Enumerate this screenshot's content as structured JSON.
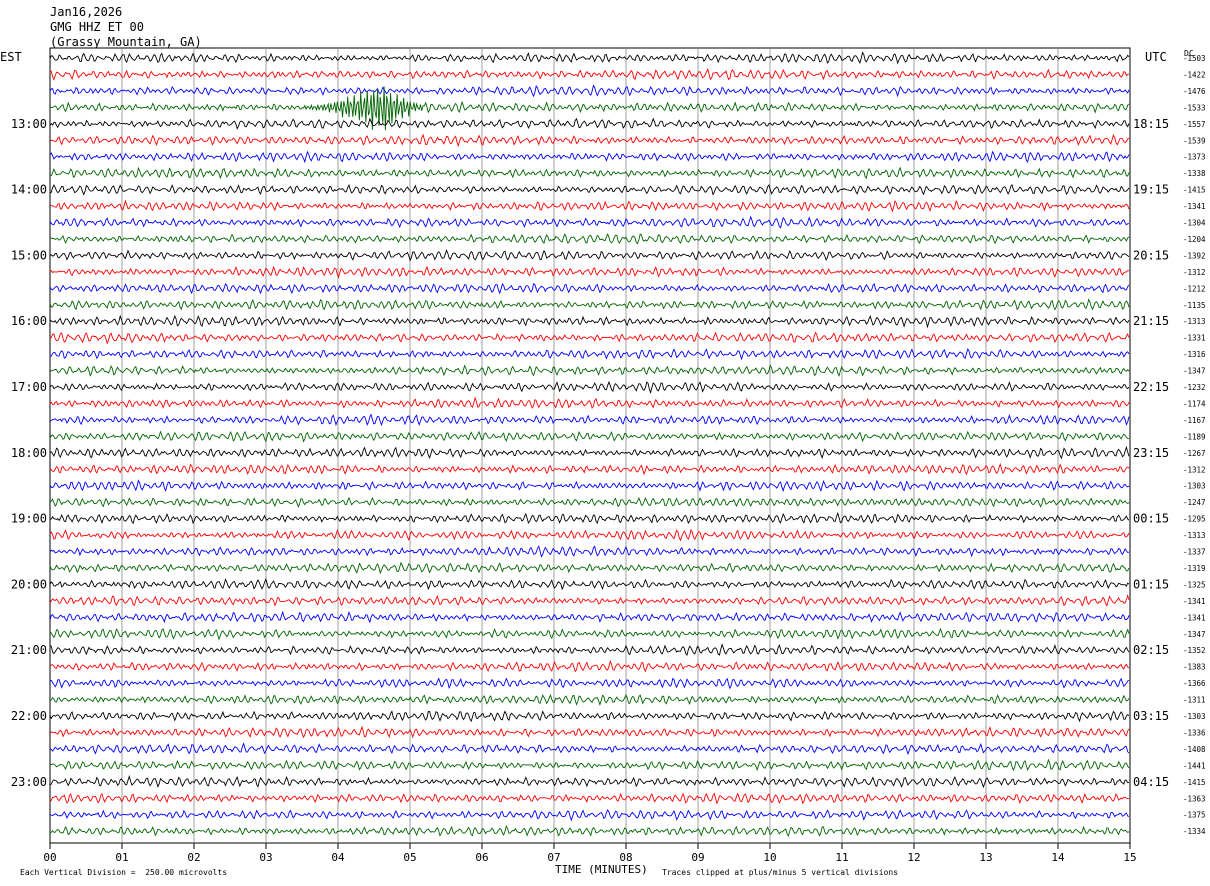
{
  "header": {
    "date": "Jan16,2026",
    "station": "GMG HHZ ET 00",
    "location": "(Grassy Mountain, GA)"
  },
  "left_zone": "EST",
  "right_zone": "UTC",
  "dc_label": "DC",
  "footer": {
    "scale_note": "Each Vertical Division =  250.00 microvolts",
    "clip_note": "Traces clipped at plus/minus 5 vertical divisions"
  },
  "chart_data": {
    "type": "line",
    "xlabel": "TIME (MINUTES)",
    "x_ticks": [
      "00",
      "01",
      "02",
      "03",
      "04",
      "05",
      "06",
      "07",
      "08",
      "09",
      "10",
      "11",
      "12",
      "13",
      "14",
      "15"
    ],
    "xlim": [
      0,
      15
    ],
    "grid": true,
    "trace_colors": [
      "#000000",
      "#ff0000",
      "#0000ff",
      "#006400"
    ],
    "left_time_labels": [
      "13:00",
      "14:00",
      "15:00",
      "16:00",
      "17:00",
      "18:00",
      "19:00",
      "20:00",
      "21:00",
      "22:00",
      "23:00"
    ],
    "right_time_labels": [
      "18:15",
      "19:15",
      "20:15",
      "21:15",
      "22:15",
      "23:15",
      "00:15",
      "01:15",
      "02:15",
      "03:15",
      "04:15"
    ],
    "dc_offsets": [
      "-1503",
      "-1422",
      "-1476",
      "-1533",
      "-1557",
      "-1539",
      "-1373",
      "-1338",
      "-1415",
      "-1341",
      "-1304",
      "-1204",
      "-1392",
      "-1312",
      "-1212",
      "-1135",
      "-1313",
      "-1331",
      "-1316",
      "-1347",
      "-1232",
      "-1174",
      "-1167",
      "-1189",
      "-1267",
      "-1312",
      "-1303",
      "-1247",
      "-1295",
      "-1313",
      "-1337",
      "-1319",
      "-1325",
      "-1341",
      "-1341",
      "-1347",
      "-1352",
      "-1383",
      "-1366",
      "-1311",
      "-1303",
      "-1336",
      "-1408",
      "-1441",
      "-1415",
      "-1363",
      "-1375",
      "-1334"
    ],
    "event": {
      "trace_index": 3,
      "start_minute": 3.5,
      "peak_minute": 4.6,
      "end_minute": 5.2
    }
  }
}
